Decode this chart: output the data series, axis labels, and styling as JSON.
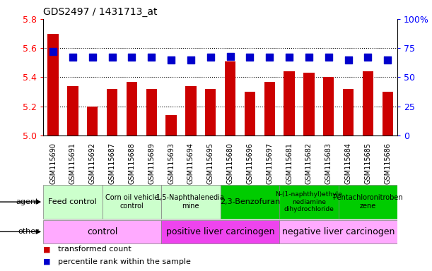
{
  "title": "GDS2497 / 1431713_at",
  "samples": [
    "GSM115690",
    "GSM115691",
    "GSM115692",
    "GSM115687",
    "GSM115688",
    "GSM115689",
    "GSM115693",
    "GSM115694",
    "GSM115695",
    "GSM115680",
    "GSM115696",
    "GSM115697",
    "GSM115681",
    "GSM115682",
    "GSM115683",
    "GSM115684",
    "GSM115685",
    "GSM115686"
  ],
  "transformed_count": [
    5.7,
    5.34,
    5.2,
    5.32,
    5.37,
    5.32,
    5.14,
    5.34,
    5.32,
    5.51,
    5.3,
    5.37,
    5.44,
    5.43,
    5.4,
    5.32,
    5.44,
    5.3
  ],
  "percentile_rank": [
    72,
    67,
    67,
    67,
    67,
    67,
    65,
    65,
    67,
    68,
    67,
    67,
    67,
    67,
    67,
    65,
    67,
    65
  ],
  "ylim": [
    5.0,
    5.8
  ],
  "yticks": [
    5.0,
    5.2,
    5.4,
    5.6,
    5.8
  ],
  "right_ylim": [
    0,
    100
  ],
  "right_yticks": [
    0,
    25,
    50,
    75,
    100
  ],
  "right_yticklabels": [
    "0",
    "25",
    "50",
    "75",
    "100%"
  ],
  "bar_color": "#cc0000",
  "dot_color": "#0000cc",
  "agent_groups": [
    {
      "label": "Feed control",
      "start": 0,
      "end": 3,
      "color": "#ccffcc",
      "fontsize": 8
    },
    {
      "label": "Corn oil vehicle\ncontrol",
      "start": 3,
      "end": 6,
      "color": "#ccffcc",
      "fontsize": 7
    },
    {
      "label": "1,5-Naphthalenedia\nmine",
      "start": 6,
      "end": 9,
      "color": "#ccffcc",
      "fontsize": 7
    },
    {
      "label": "2,3-Benzofuran",
      "start": 9,
      "end": 12,
      "color": "#00cc00",
      "fontsize": 8
    },
    {
      "label": "N-(1-naphthyl)ethyle\nnediamine\ndihydrochloride",
      "start": 12,
      "end": 15,
      "color": "#00cc00",
      "fontsize": 6.5
    },
    {
      "label": "Pentachloronitroben\nzene",
      "start": 15,
      "end": 18,
      "color": "#00cc00",
      "fontsize": 7
    }
  ],
  "other_groups": [
    {
      "label": "control",
      "start": 0,
      "end": 6,
      "color": "#ffaaff",
      "fontsize": 9
    },
    {
      "label": "positive liver carcinogen",
      "start": 6,
      "end": 12,
      "color": "#ee44ee",
      "fontsize": 9
    },
    {
      "label": "negative liver carcinogen",
      "start": 12,
      "end": 18,
      "color": "#ffaaff",
      "fontsize": 9
    }
  ],
  "legend_items": [
    {
      "label": "transformed count",
      "color": "#cc0000"
    },
    {
      "label": "percentile rank within the sample",
      "color": "#0000cc"
    }
  ],
  "bar_width": 0.55,
  "dot_size": 45,
  "gridline_color": "#000000",
  "gridline_style": "dotted",
  "bg_color": "#ffffff"
}
